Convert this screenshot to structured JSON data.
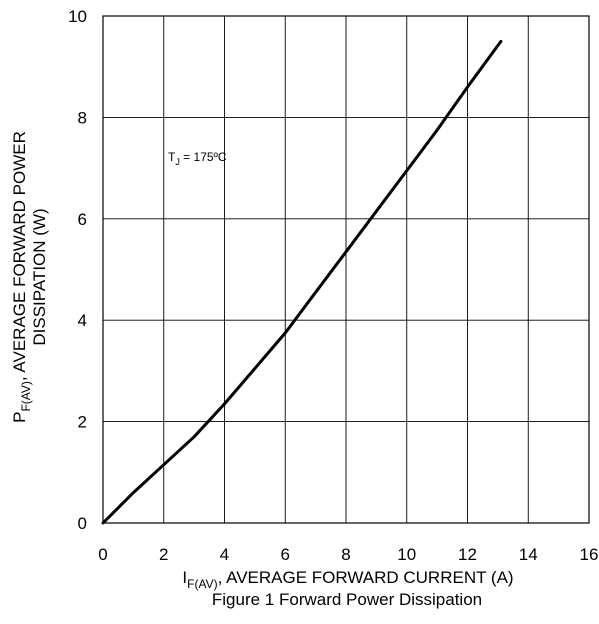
{
  "chart_data": {
    "type": "line",
    "xlabel": {
      "prefix": "I",
      "sub": "F(AV)",
      "suffix": ", AVERAGE FORWARD CURRENT (A)"
    },
    "ylabel": {
      "line1_prefix": "P",
      "line1_sub": "F(AV)",
      "line1_suffix": ", AVERAGE FORWARD POWER",
      "line2": "DISSIPATION (W)"
    },
    "caption": "Figure 1 Forward Power Dissipation",
    "annotation": {
      "prefix": "T",
      "sub": "J",
      "suffix": " = 175ºC"
    },
    "xlim": [
      0,
      16
    ],
    "ylim": [
      0,
      10
    ],
    "x_ticks": [
      "0",
      "2",
      "4",
      "6",
      "8",
      "10",
      "12",
      "14",
      "16"
    ],
    "y_ticks": [
      "0",
      "2",
      "4",
      "6",
      "8",
      "10"
    ],
    "grid": true,
    "series": [
      {
        "x": [
          0,
          1,
          2,
          3,
          4,
          5,
          6,
          7,
          8,
          9,
          10,
          11,
          12,
          13.1
        ],
        "y": [
          0,
          0.6,
          1.15,
          1.7,
          2.35,
          3.05,
          3.75,
          4.55,
          5.35,
          6.15,
          6.95,
          7.75,
          8.6,
          9.5
        ]
      }
    ]
  }
}
